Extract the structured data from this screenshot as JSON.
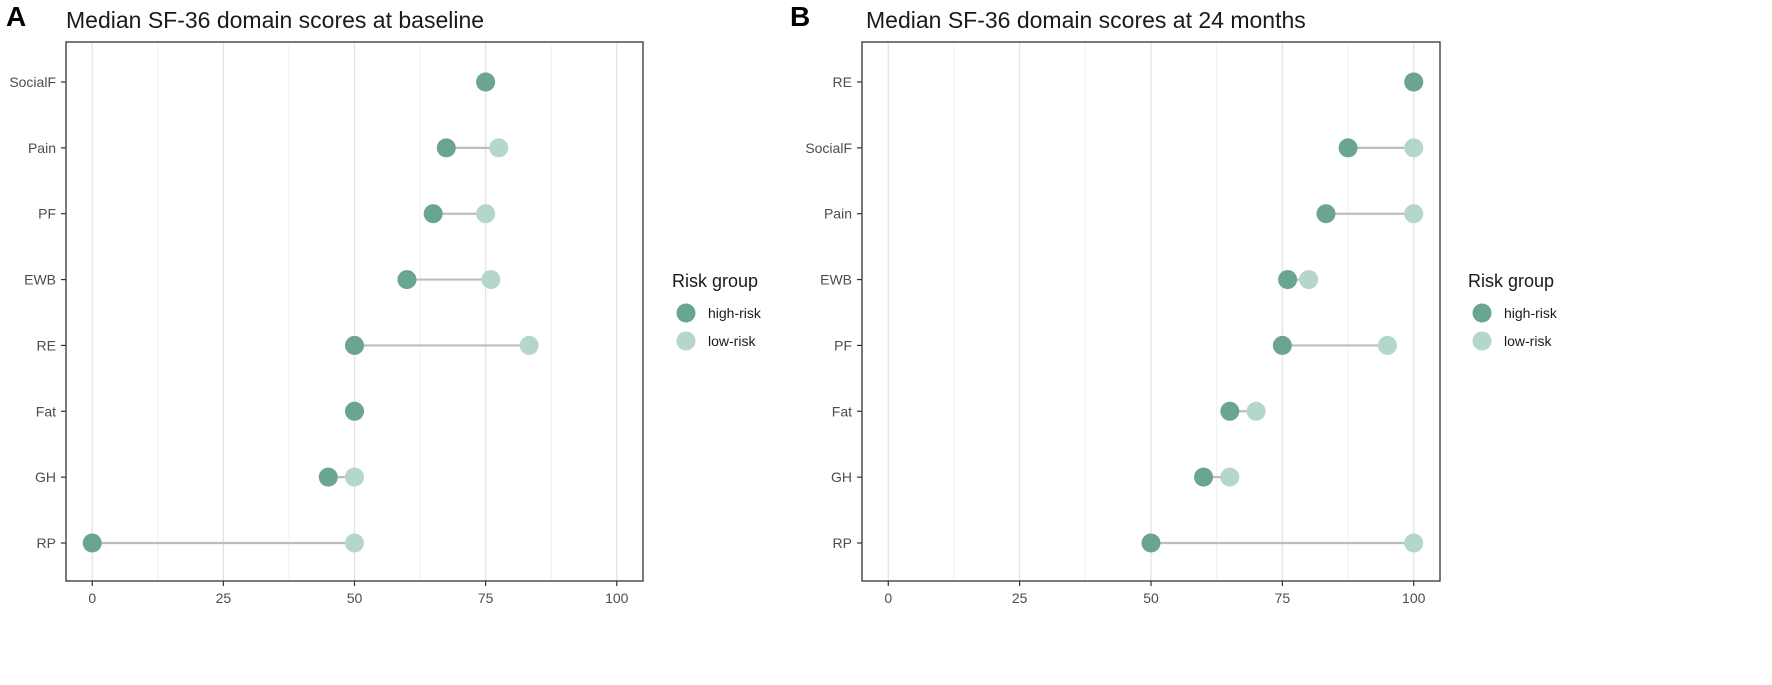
{
  "chart_data": [
    {
      "type": "dumbbell",
      "panel_label": "A",
      "title": "Median SF-36 domain scores at baseline",
      "xlabel": "",
      "ylabel": "",
      "xlim": [
        -5,
        105
      ],
      "x_ticks": [
        0,
        25,
        50,
        75,
        100
      ],
      "grid": true,
      "legend_position": "right",
      "legend_title": "Risk group",
      "categories": [
        "SocialF",
        "Pain",
        "PF",
        "EWB",
        "RE",
        "Fat",
        "GH",
        "RP"
      ],
      "series": [
        {
          "name": "high-risk",
          "color": "#6aa58f",
          "values": [
            75,
            67.5,
            65,
            60,
            50,
            50,
            45,
            0
          ]
        },
        {
          "name": "low-risk",
          "color": "#b5d6ca",
          "values": [
            75,
            77.5,
            75,
            76,
            83.3,
            50,
            50,
            50
          ]
        }
      ]
    },
    {
      "type": "dumbbell",
      "panel_label": "B",
      "title": "Median SF-36 domain scores at 24 months",
      "xlabel": "",
      "ylabel": "",
      "xlim": [
        -5,
        105
      ],
      "x_ticks": [
        0,
        25,
        50,
        75,
        100
      ],
      "grid": true,
      "legend_position": "right",
      "legend_title": "Risk group",
      "categories": [
        "RE",
        "SocialF",
        "Pain",
        "EWB",
        "PF",
        "Fat",
        "GH",
        "RP"
      ],
      "series": [
        {
          "name": "high-risk",
          "color": "#6aa58f",
          "values": [
            100,
            87.5,
            83.3,
            76,
            75,
            65,
            60,
            50
          ]
        },
        {
          "name": "low-risk",
          "color": "#b5d6ca",
          "values": [
            100,
            100,
            100,
            80,
            95,
            70,
            65,
            100
          ]
        }
      ]
    }
  ]
}
